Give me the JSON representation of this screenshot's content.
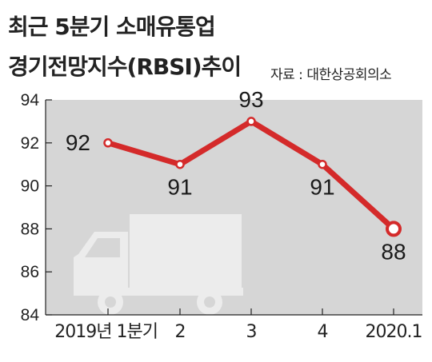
{
  "header": {
    "title_line1": "최근 5분기 소매유통업",
    "title_line2": "경기전망지수(RBSI)추이",
    "source": "자료 : 대한상공회의소"
  },
  "colors": {
    "plot_bg": "#d6d6d6",
    "line": "#d42a2a",
    "marker_fill": "#ffffff",
    "truck": "#ececec"
  },
  "icons": [
    "truck-icon"
  ],
  "chart_data": {
    "type": "line",
    "title": "최근 5분기 소매유통업 경기전망지수(RBSI)추이",
    "categories": [
      "2019년 1분기",
      "2",
      "3",
      "4",
      "2020.1"
    ],
    "series": [
      {
        "values": [
          92,
          91,
          93,
          91,
          88
        ]
      }
    ],
    "data_labels": [
      "92",
      "91",
      "93",
      "91",
      "88"
    ],
    "ylim": [
      84,
      94
    ],
    "yticks": [
      84,
      86,
      88,
      90,
      92,
      94
    ],
    "xlabel": "",
    "ylabel": "",
    "grid": false,
    "legend": "none"
  }
}
